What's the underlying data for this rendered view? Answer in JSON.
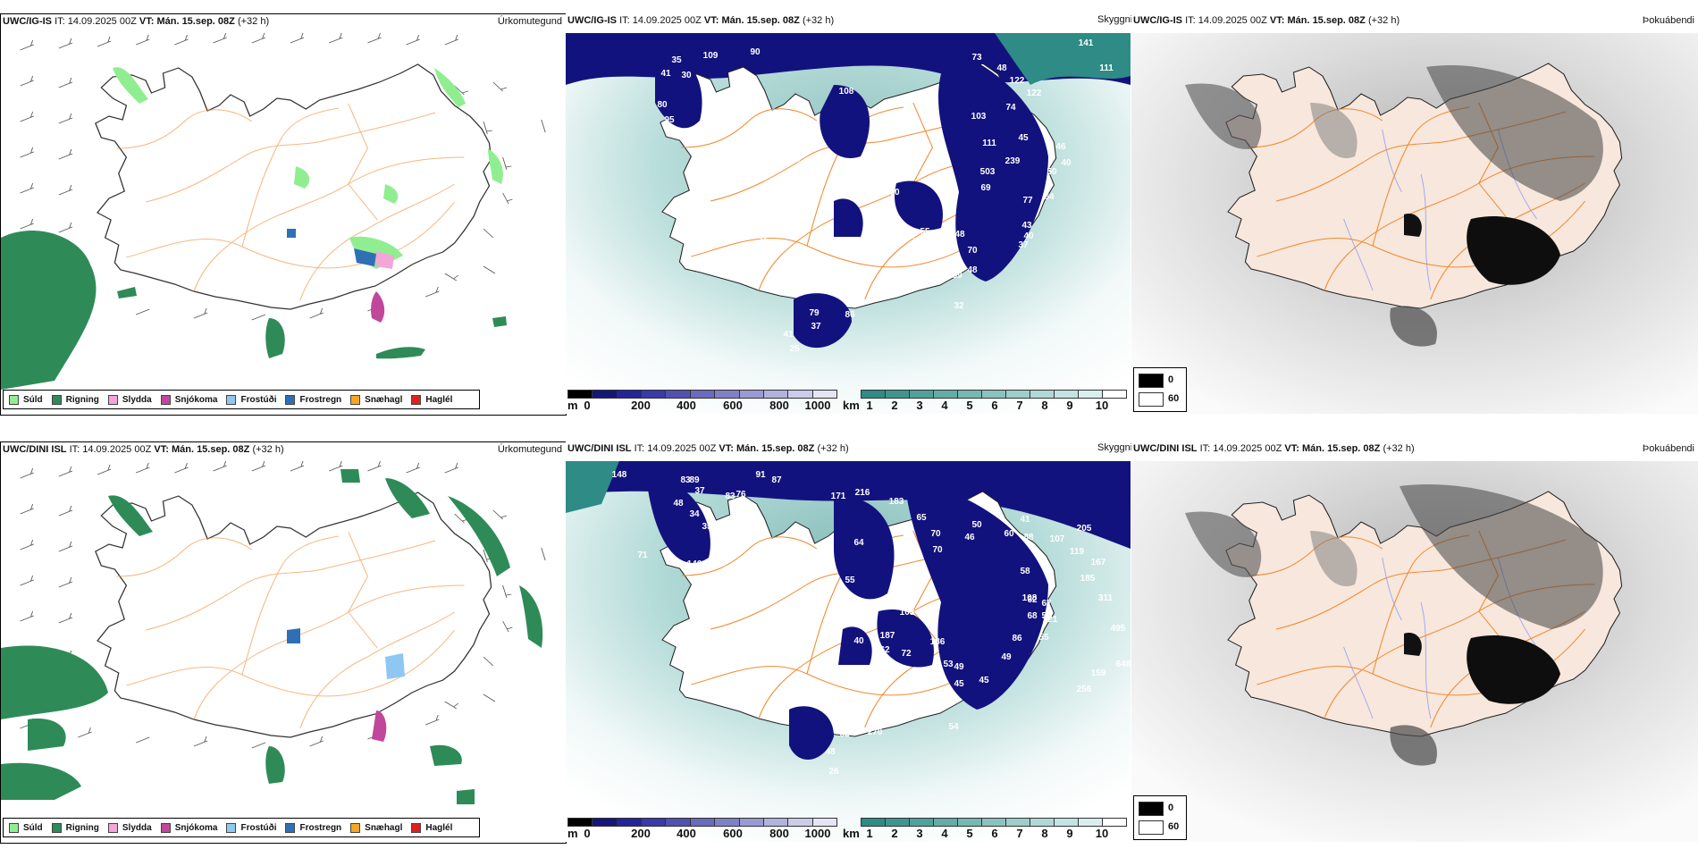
{
  "row1": {
    "precip": {
      "model": "UWC/IG-IS",
      "it_label": "IT:",
      "it_value": "14.09.2025 00Z",
      "vt_label": "VT:",
      "vt_value": "Mán. 15.sep. 08Z",
      "lead": "(+32 h)",
      "title": "Úrkomutegund"
    },
    "vis": {
      "model": "UWC/IG-IS",
      "it_label": "IT:",
      "it_value": "14.09.2025 00Z",
      "vt_label": "VT:",
      "vt_value": "Mán. 15.sep. 08Z",
      "lead": "(+32 h)",
      "title": "Skyggni",
      "labels": [
        "109",
        "90",
        "35",
        "41",
        "30",
        "80",
        "95",
        "158",
        "19",
        "52",
        "48",
        "40",
        "50",
        "55",
        "47",
        "60",
        "70",
        "108",
        "78",
        "71",
        "60",
        "60",
        "54",
        "55",
        "39",
        "48",
        "70",
        "59",
        "48",
        "32",
        "73",
        "48",
        "122",
        "122",
        "141",
        "111",
        "103",
        "74",
        "111",
        "45",
        "46",
        "40",
        "50",
        "503",
        "239",
        "69",
        "77",
        "64",
        "43",
        "40",
        "37",
        "79",
        "37",
        "41",
        "25",
        "86",
        "197",
        "29"
      ]
    },
    "cloud": {
      "model": "UWC/IG-IS",
      "it_label": "IT:",
      "it_value": "14.09.2025 00Z",
      "vt_label": "VT:",
      "vt_value": "Mán. 15.sep. 08Z",
      "lead": "(+32 h)",
      "title": "Þokuábendi"
    }
  },
  "row2": {
    "precip": {
      "model": "UWC/DINI ISL",
      "it_label": "IT:",
      "it_value": "14.09.2025 00Z",
      "vt_label": "VT:",
      "vt_value": "Mán. 15.sep. 08Z",
      "lead": "(+32 h)",
      "title": "Úrkomutegund"
    },
    "vis": {
      "model": "UWC/DINI ISL",
      "it_label": "IT:",
      "it_value": "14.09.2025 00Z",
      "vt_label": "VT:",
      "vt_value": "Mán. 15.sep. 08Z",
      "lead": "(+32 h)",
      "title": "Skyggni",
      "labels": [
        "148",
        "89",
        "91",
        "87",
        "83",
        "83",
        "76",
        "37",
        "48",
        "34",
        "35",
        "71",
        "146",
        "96",
        "136",
        "92",
        "13",
        "171",
        "216",
        "183",
        "65",
        "70",
        "70",
        "50",
        "46",
        "60",
        "41",
        "88",
        "107",
        "205",
        "119",
        "167",
        "185",
        "311",
        "495",
        "648",
        "159",
        "256",
        "58",
        "64",
        "55",
        "74",
        "155",
        "103",
        "187",
        "40",
        "62",
        "72",
        "49",
        "45",
        "53",
        "45",
        "49",
        "86",
        "121",
        "68",
        "62",
        "108",
        "67",
        "59",
        "55",
        "62",
        "48",
        "26",
        "54",
        "186",
        "270"
      ]
    },
    "cloud": {
      "model": "UWC/DINI ISL",
      "it_label": "IT:",
      "it_value": "14.09.2025 00Z",
      "vt_label": "VT:",
      "vt_value": "Mán. 15.sep. 08Z",
      "lead": "(+32 h)",
      "title": "Þokuábendi"
    }
  },
  "precip_legend": [
    {
      "label": "Súld",
      "color": "#90ee90"
    },
    {
      "label": "Rigning",
      "color": "#2e8b57"
    },
    {
      "label": "Slydda",
      "color": "#f4a6d7"
    },
    {
      "label": "Snjókoma",
      "color": "#c0479a"
    },
    {
      "label": "Frostúði",
      "color": "#8ec8f2"
    },
    {
      "label": "Frostregn",
      "color": "#2f6fb5"
    },
    {
      "label": "Snæhagl",
      "color": "#f5a623"
    },
    {
      "label": "Haglél",
      "color": "#e02020"
    }
  ],
  "height_bar": {
    "unit": "m",
    "ticks": [
      "0",
      "200",
      "400",
      "600",
      "800",
      "1000"
    ],
    "colors": [
      "#000000",
      "#16167a",
      "#25259a",
      "#3a3aa8",
      "#5151b3",
      "#6a6abf",
      "#8080c9",
      "#9a9ad4",
      "#b2b2de",
      "#cbcbea",
      "#e4e4f5"
    ]
  },
  "km_bar": {
    "unit": "km",
    "ticks": [
      "1",
      "2",
      "3",
      "4",
      "5",
      "6",
      "7",
      "8",
      "9",
      "10"
    ],
    "colors": [
      "#2e8b85",
      "#3f9691",
      "#51a19d",
      "#63aca8",
      "#76b8b4",
      "#89c3c0",
      "#9ccecb",
      "#afd9d7",
      "#c2e4e2",
      "#d8efee",
      "#ffffff"
    ]
  },
  "gray_legend": [
    {
      "label": "0",
      "color": "#000000"
    },
    {
      "label": "60",
      "color": "#ffffff"
    }
  ],
  "colors": {
    "land": "#f7e7dc",
    "roads": "#f28a2e",
    "sea_teal": "#5fb3ad",
    "fog_dark": "#1a1a1a",
    "vis_blue": "#12127e"
  }
}
